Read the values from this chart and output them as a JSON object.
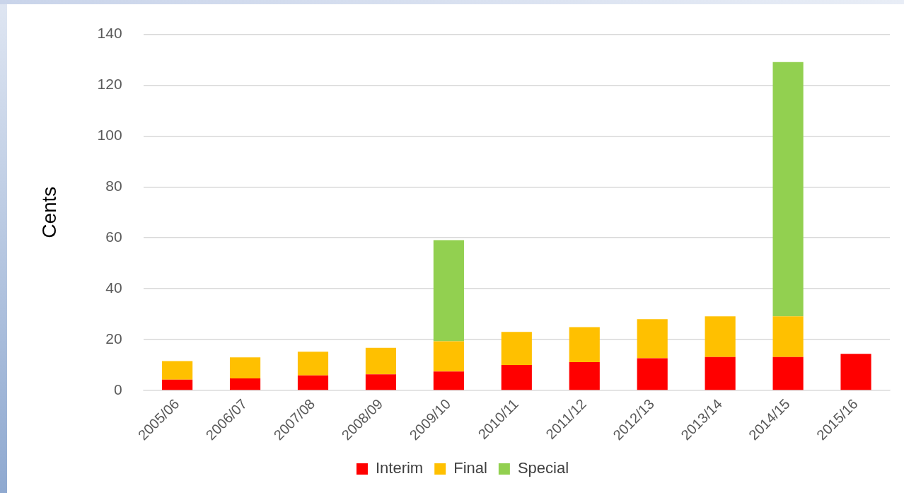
{
  "chart_data": {
    "type": "bar",
    "stacked": true,
    "ylabel": "Cents",
    "categories": [
      "2005/06",
      "2006/07",
      "2007/08",
      "2008/09",
      "2009/10",
      "2010/11",
      "2011/12",
      "2012/13",
      "2013/14",
      "2014/15",
      "2015/16"
    ],
    "series": [
      {
        "name": "Interim",
        "color": "#ff0000",
        "values": [
          4.2,
          4.7,
          5.9,
          6.3,
          7.4,
          10,
          11.1,
          12.6,
          13.1,
          13.1,
          14.4
        ]
      },
      {
        "name": "Final",
        "color": "#ffc000",
        "values": [
          7.3,
          8.3,
          9.3,
          10.4,
          11.9,
          13,
          13.8,
          15.4,
          16,
          16,
          null
        ]
      },
      {
        "name": "Special",
        "color": "#92d050",
        "values": [
          null,
          null,
          null,
          null,
          39.8,
          null,
          null,
          null,
          null,
          100,
          null
        ]
      }
    ],
    "ylim": [
      0,
      140
    ],
    "yticks": [
      0,
      20,
      40,
      60,
      80,
      100,
      120,
      140
    ],
    "grid": "y",
    "legend": "bottom"
  }
}
